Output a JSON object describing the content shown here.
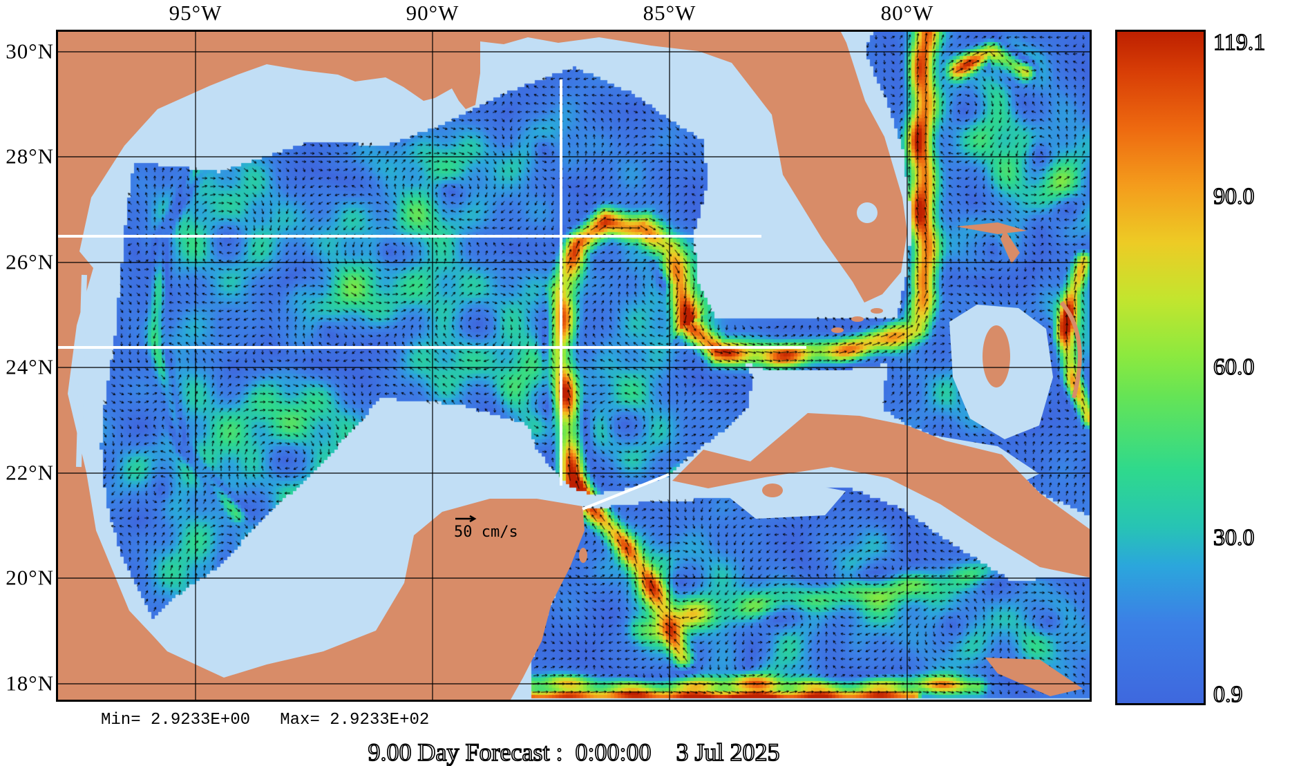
{
  "map": {
    "x_axis": {
      "side": "top",
      "ticks": [
        {
          "label": "95°W"
        },
        {
          "label": "90°W"
        },
        {
          "label": "85°W"
        },
        {
          "label": "80°W"
        }
      ]
    },
    "y_axis": {
      "side": "left",
      "ticks": [
        {
          "label": "30°N"
        },
        {
          "label": "28°N"
        },
        {
          "label": "26°N"
        },
        {
          "label": "24°N"
        },
        {
          "label": "22°N"
        },
        {
          "label": "20°N"
        },
        {
          "label": "18°N"
        }
      ]
    },
    "scale_reference": {
      "label": "50 cm/s"
    },
    "colors": {
      "land": "#D88C68",
      "shelf_water": "#C1DEF5",
      "grid_line": "#000000",
      "transect_line": "#ffffff",
      "vector_arrow": "#000000",
      "frame": "#000000"
    }
  },
  "colorbar": {
    "min": 0.9,
    "max": 119.1,
    "ticks": [
      {
        "label": "119.1",
        "value": 119.1
      },
      {
        "label": "90.0",
        "value": 90.0
      },
      {
        "label": "60.0",
        "value": 60.0
      },
      {
        "label": "30.0",
        "value": 30.0
      },
      {
        "label": "0.9",
        "value": 0.9
      }
    ],
    "stops": [
      {
        "value": 119.1,
        "color": "#BD2000"
      },
      {
        "value": 112.0,
        "color": "#D83E06"
      },
      {
        "value": 102.0,
        "color": "#EE6A10"
      },
      {
        "value": 92.0,
        "color": "#F49C1C"
      },
      {
        "value": 82.0,
        "color": "#EDCB25"
      },
      {
        "value": 72.0,
        "color": "#C3E52E"
      },
      {
        "value": 62.0,
        "color": "#8CE93F"
      },
      {
        "value": 55.0,
        "color": "#66E455"
      },
      {
        "value": 42.0,
        "color": "#2FD98C"
      },
      {
        "value": 32.0,
        "color": "#27C4B4"
      },
      {
        "value": 25.0,
        "color": "#2BA6DC"
      },
      {
        "value": 15.0,
        "color": "#3C7FE6"
      },
      {
        "value": 0.9,
        "color": "#3E68DE"
      }
    ]
  },
  "footer": {
    "stats": "Min= 2.9233E+00   Max= 2.9233E+02",
    "caption": "9.00 Day Forecast :  0:00:00    3 Jul 2025"
  },
  "chart_data": {
    "type": "heatmap",
    "subtype": "ocean-current-vector-field",
    "region": "Gulf of Mexico / NW Caribbean / Florida Straits",
    "x_tick_labels": [
      "95°W",
      "90°W",
      "85°W",
      "80°W"
    ],
    "y_tick_labels": [
      "30°N",
      "28°N",
      "26°N",
      "24°N",
      "22°N",
      "20°N",
      "18°N"
    ],
    "colorbar_tick_values": [
      119.1,
      90.0,
      60.0,
      30.0,
      0.9
    ],
    "colorbar_range": [
      0.9,
      119.1
    ],
    "field_min": "2.9233E+00",
    "field_max": "2.9233E+02",
    "reference_vector": "50 cm/s",
    "forecast_caption": "9.00 Day Forecast :  0:00:00    3 Jul 2025",
    "grid": true,
    "legend_position": "right-colorbar"
  }
}
